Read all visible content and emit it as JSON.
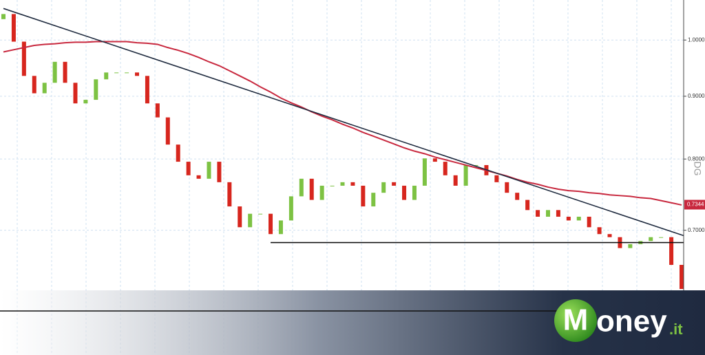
{
  "chart_data": {
    "type": "candlestick",
    "log_scale": true,
    "grid": true,
    "categories": [
      null,
      null,
      null,
      null,
      null,
      null,
      null,
      null,
      null,
      null,
      null,
      null,
      null,
      null,
      null,
      null,
      null,
      null,
      null,
      null,
      null,
      null,
      null,
      null,
      null,
      null,
      null,
      null,
      null,
      null,
      null,
      null,
      null,
      null,
      null,
      null,
      null,
      null,
      null,
      null,
      null,
      null,
      null,
      null,
      null,
      null,
      null,
      null,
      null,
      null,
      null,
      null,
      null,
      null,
      null,
      null,
      null,
      null,
      null,
      null,
      null,
      null,
      null,
      null,
      null,
      null,
      null
    ],
    "open": [
      1.04,
      1.05,
      0.997,
      0.935,
      0.905,
      0.923,
      0.96,
      0.923,
      0.888,
      0.894,
      0.929,
      0.941,
      0.941,
      0.941,
      0.935,
      0.888,
      0.865,
      0.822,
      0.796,
      0.776,
      0.771,
      0.796,
      0.766,
      0.732,
      0.704,
      0.722,
      0.722,
      0.695,
      0.713,
      0.746,
      0.771,
      0.741,
      0.761,
      0.761,
      0.766,
      0.761,
      0.732,
      0.751,
      0.766,
      0.761,
      0.741,
      0.761,
      0.801,
      0.796,
      0.776,
      0.761,
      0.791,
      0.791,
      0.776,
      0.766,
      0.751,
      0.741,
      0.727,
      0.718,
      0.727,
      0.718,
      0.713,
      0.718,
      0.704,
      0.695,
      0.691,
      0.677,
      0.682,
      0.686,
      0.691,
      0.691,
      0.656
    ],
    "close": [
      1.05,
      0.997,
      0.935,
      0.905,
      0.923,
      0.96,
      0.923,
      0.888,
      0.894,
      0.929,
      0.941,
      0.941,
      0.941,
      0.935,
      0.888,
      0.865,
      0.822,
      0.796,
      0.776,
      0.771,
      0.796,
      0.766,
      0.732,
      0.704,
      0.722,
      0.722,
      0.695,
      0.713,
      0.746,
      0.771,
      0.741,
      0.761,
      0.761,
      0.766,
      0.761,
      0.732,
      0.751,
      0.766,
      0.761,
      0.741,
      0.761,
      0.801,
      0.796,
      0.776,
      0.761,
      0.791,
      0.791,
      0.776,
      0.766,
      0.751,
      0.741,
      0.727,
      0.718,
      0.727,
      0.718,
      0.713,
      0.718,
      0.704,
      0.695,
      0.691,
      0.677,
      0.682,
      0.686,
      0.691,
      0.691,
      0.656,
      0.627
    ],
    "up_color": "#7dc243",
    "down_color": "#d7261e",
    "series": [
      {
        "color": "#c8283e",
        "values": [
          0.978,
          0.982,
          0.986,
          0.99,
          0.992,
          0.993,
          0.995,
          0.996,
          0.996,
          0.997,
          0.997,
          0.997,
          0.997,
          0.995,
          0.994,
          0.992,
          0.986,
          0.981,
          0.975,
          0.968,
          0.96,
          0.953,
          0.944,
          0.935,
          0.926,
          0.916,
          0.907,
          0.897,
          0.889,
          0.882,
          0.874,
          0.867,
          0.861,
          0.854,
          0.848,
          0.841,
          0.835,
          0.829,
          0.823,
          0.817,
          0.812,
          0.808,
          0.803,
          0.799,
          0.795,
          0.791,
          0.787,
          0.783,
          0.779,
          0.775,
          0.77,
          0.766,
          0.763,
          0.759,
          0.756,
          0.754,
          0.753,
          0.751,
          0.75,
          0.748,
          0.747,
          0.746,
          0.744,
          0.743,
          0.74,
          0.737,
          0.734
        ]
      }
    ],
    "trendlines": [
      {
        "color": "#1e2a3e",
        "start": [
          0,
          1.061
        ],
        "end": [
          66,
          0.693
        ]
      },
      {
        "color": "#111111",
        "start": [
          26,
          0.684
        ],
        "end": [
          66,
          0.684
        ]
      }
    ],
    "ylim": [
      0.554,
      1.078
    ],
    "yticks": [
      {
        "value": 0.7,
        "label": "0.7000"
      },
      {
        "value": 0.8,
        "label": "0.8000"
      },
      {
        "value": 0.9,
        "label": "0.9000"
      },
      {
        "value": 1,
        "label": "1.0000"
      }
    ],
    "last_value": {
      "value": 0.7344,
      "label": "0.7344"
    },
    "watermark": "DG"
  },
  "logo": {
    "letter": "M",
    "text": "oney",
    "suffix": ".it"
  }
}
